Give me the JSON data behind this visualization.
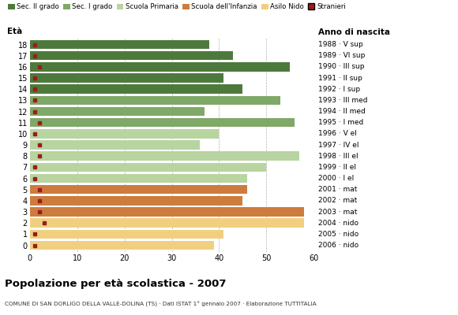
{
  "ages": [
    18,
    17,
    16,
    15,
    14,
    13,
    12,
    11,
    10,
    9,
    8,
    7,
    6,
    5,
    4,
    3,
    2,
    1,
    0
  ],
  "anno_nascita": [
    "1988 · V sup",
    "1989 · VI sup",
    "1990 · III sup",
    "1991 · II sup",
    "1992 · I sup",
    "1993 · III med",
    "1994 · II med",
    "1995 · I med",
    "1996 · V el",
    "1997 · IV el",
    "1998 · III el",
    "1999 · II el",
    "2000 · I el",
    "2001 · mat",
    "2002 · mat",
    "2003 · mat",
    "2004 · nido",
    "2005 · nido",
    "2006 · nido"
  ],
  "bar_values": [
    38,
    43,
    55,
    41,
    45,
    53,
    37,
    56,
    40,
    36,
    57,
    50,
    46,
    46,
    45,
    58,
    58,
    41,
    39
  ],
  "stranieri": [
    1,
    1,
    2,
    1,
    1,
    1,
    1,
    2,
    1,
    2,
    2,
    1,
    1,
    2,
    2,
    2,
    3,
    1,
    1
  ],
  "bar_colors": [
    "#4d7a3c",
    "#4d7a3c",
    "#4d7a3c",
    "#4d7a3c",
    "#4d7a3c",
    "#80a868",
    "#80a868",
    "#80a868",
    "#b8d4a0",
    "#b8d4a0",
    "#b8d4a0",
    "#b8d4a0",
    "#b8d4a0",
    "#cd7c3e",
    "#cd7c3e",
    "#cd7c3e",
    "#f0d080",
    "#f0d080",
    "#f0d080"
  ],
  "stranieri_color": "#9b1c1c",
  "legend_labels": [
    "Sec. II grado",
    "Sec. I grado",
    "Scuola Primaria",
    "Scuola dell'Infanzia",
    "Asilo Nido",
    "Stranieri"
  ],
  "legend_colors": [
    "#4d7a3c",
    "#80a868",
    "#b8d4a0",
    "#cd7c3e",
    "#f0d080",
    "#9b1c1c"
  ],
  "title": "Popolazione per età scolastica - 2007",
  "subtitle": "COMUNE DI SAN DORLIGO DELLA VALLE-DOLINA (TS) · Dati ISTAT 1° gennaio 2007 · Elaborazione TUTTITALIA",
  "xlabel_eta": "Età",
  "xlabel_anno": "Anno di nascita",
  "xlim": [
    0,
    60
  ],
  "grid_color": "#b0b0b0",
  "bg_color": "#ffffff",
  "bar_height": 0.82
}
